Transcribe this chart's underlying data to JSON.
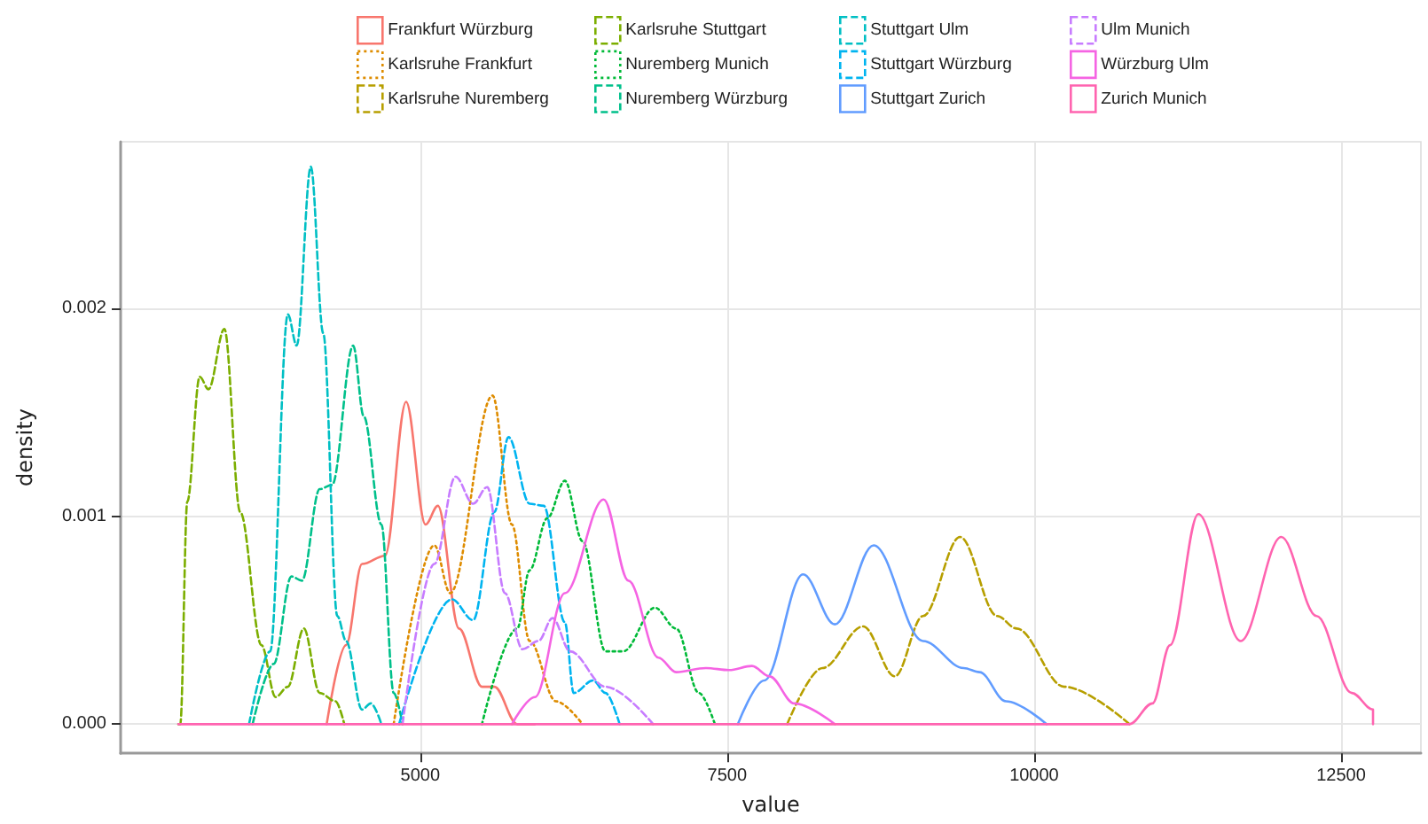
{
  "chart_data": {
    "type": "line",
    "xlabel": "value",
    "ylabel": "density",
    "legend": "top",
    "grid": true,
    "xlim": [
      2560,
      13150
    ],
    "ylim": [
      -0.00014,
      0.0028
    ],
    "xticks": [
      5000,
      7500,
      10000,
      12500
    ],
    "yticks": [
      {
        "value": 0,
        "label": "0.000"
      },
      {
        "value": 0.001,
        "label": "0.001"
      },
      {
        "value": 0.002,
        "label": "0.002"
      }
    ],
    "series": [
      {
        "name": "Frankfurt Würzburg",
        "color": "#f8766d",
        "line_style": "solid",
        "x": [
          4238,
          4396,
          4526,
          4713,
          4885,
          5043,
          5144,
          5316,
          5503,
          5604,
          5790,
          5934
        ],
        "values": [
          0,
          0.00038,
          0.00077,
          0.00081,
          0.00155,
          0.00096,
          0.00105,
          0.00046,
          0.00018,
          0.00018,
          0,
          0
        ]
      },
      {
        "name": "Karlsruhe Frankfurt",
        "color": "#de8c00",
        "line_style": "dotted",
        "x": [
          4784,
          5115,
          5244,
          5589,
          5747,
          5891,
          6106,
          6322
        ],
        "values": [
          0,
          0.00086,
          0.00063,
          0.00158,
          0.00096,
          0.0004,
          0.00011,
          0
        ]
      },
      {
        "name": "Karlsruhe Nuremberg",
        "color": "#b79f00",
        "line_style": "dashed",
        "x": [
          7989,
          8276,
          8607,
          8866,
          9095,
          9397,
          9699,
          9857,
          10245,
          10777
        ],
        "values": [
          0,
          0.00027,
          0.00047,
          0.00023,
          0.00052,
          0.0009,
          0.00052,
          0.00046,
          0.00018,
          0
        ]
      },
      {
        "name": "Karlsruhe Stuttgart",
        "color": "#7cae00",
        "line_style": "dashed",
        "x": [
          3030,
          3046,
          3103,
          3204,
          3276,
          3405,
          3534,
          3707,
          3822,
          3922,
          4052,
          4181,
          4310,
          4382
        ],
        "values": [
          0,
          0,
          0.00107,
          0.00167,
          0.00161,
          0.0019,
          0.00102,
          0.00038,
          0.00013,
          0.00018,
          0.00046,
          0.00015,
          0.00011,
          0
        ]
      },
      {
        "name": "Nuremberg Munich",
        "color": "#00ba38",
        "line_style": "dotted",
        "x": [
          5503,
          5790,
          5891,
          6035,
          6178,
          6322,
          6509,
          6653,
          6911,
          7084,
          7270,
          7400
        ],
        "values": [
          0,
          0.00046,
          0.00074,
          0.00099,
          0.00117,
          0.00088,
          0.00035,
          0.00035,
          0.00056,
          0.00046,
          0.00015,
          0
        ]
      },
      {
        "name": "Nuremberg Würzburg",
        "color": "#00c08b",
        "line_style": "dashed",
        "x": [
          3635,
          3807,
          3951,
          4037,
          4181,
          4282,
          4454,
          4540,
          4684,
          4784,
          4856
        ],
        "values": [
          0,
          0.00029,
          0.00071,
          0.00069,
          0.00113,
          0.00115,
          0.00182,
          0.00148,
          0.00096,
          0.00015,
          0
        ]
      },
      {
        "name": "Stuttgart Ulm",
        "color": "#00bfc4",
        "line_style": "dashed",
        "x": [
          3606,
          3778,
          3922,
          3994,
          4109,
          4210,
          4325,
          4396,
          4526,
          4598,
          4684
        ],
        "values": [
          0,
          0.00035,
          0.00197,
          0.00182,
          0.00268,
          0.00188,
          0.00052,
          0.0004,
          7e-05,
          0.0001,
          0
        ]
      },
      {
        "name": "Stuttgart Würzburg",
        "color": "#00b4f0",
        "line_style": "dashed",
        "x": [
          4828,
          5259,
          5431,
          5604,
          5719,
          5891,
          6006,
          6178,
          6250,
          6408,
          6509,
          6624
        ],
        "values": [
          0,
          0.0006,
          0.0005,
          0.00102,
          0.00138,
          0.00106,
          0.00105,
          0.00049,
          0.00015,
          0.00021,
          0.00015,
          0
        ]
      },
      {
        "name": "Stuttgart Zurich",
        "color": "#619cff",
        "line_style": "solid",
        "x": [
          7587,
          7802,
          8118,
          8377,
          8693,
          9095,
          9426,
          9555,
          9771,
          10101
        ],
        "values": [
          0,
          0.00021,
          0.00072,
          0.00048,
          0.00086,
          0.0004,
          0.00027,
          0.00025,
          0.00011,
          0
        ]
      },
      {
        "name": "Ulm Munich",
        "color": "#c77cff",
        "line_style": "dashed",
        "x": [
          4856,
          5115,
          5287,
          5431,
          5546,
          5690,
          5833,
          5963,
          6078,
          6221,
          6509,
          6897
        ],
        "values": [
          0,
          0.00077,
          0.00119,
          0.00106,
          0.00114,
          0.00063,
          0.00036,
          0.0004,
          0.00051,
          0.00035,
          0.00018,
          0
        ]
      },
      {
        "name": "Würzburg Ulm",
        "color": "#f564e3",
        "line_style": "solid",
        "x": [
          5747,
          5934,
          6178,
          6494,
          6696,
          6940,
          7084,
          7327,
          7515,
          7702,
          7845,
          8046,
          8377
        ],
        "values": [
          0,
          0.00013,
          0.00063,
          0.00108,
          0.00069,
          0.00032,
          0.00025,
          0.00027,
          0.00026,
          0.00028,
          0.00023,
          0.0001,
          0
        ]
      },
      {
        "name": "Zurich Munich",
        "color": "#ff64b0",
        "line_style": "solid",
        "x": [
          3030,
          10777,
          10964,
          11107,
          11337,
          11682,
          12013,
          12300,
          12587,
          12760,
          12760
        ],
        "values": [
          0,
          0,
          0.0001,
          0.00038,
          0.00101,
          0.0004,
          0.0009,
          0.00052,
          0.00015,
          7e-05,
          0
        ]
      }
    ]
  }
}
